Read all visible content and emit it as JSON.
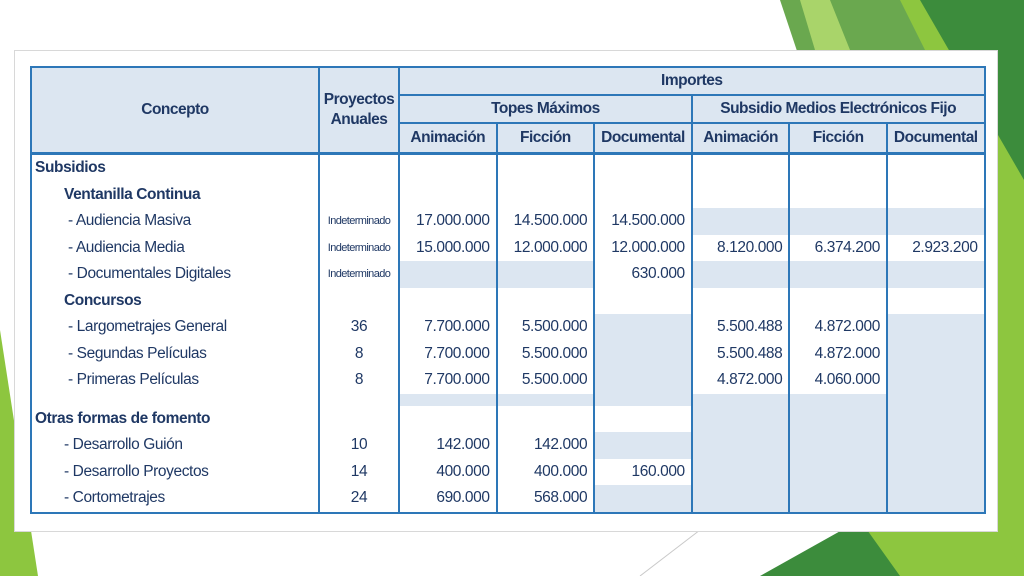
{
  "colors": {
    "accent": "#2d77b8",
    "header_fill": "#dce6f1",
    "text": "#1f3864",
    "green_light": "#8dc63f",
    "green_dark": "#3c8c3c"
  },
  "header": {
    "concepto": "Concepto",
    "proyectos_line1": "Proyectos",
    "proyectos_line2": "Anuales",
    "importes": "Importes",
    "group1": "Topes Máximos",
    "group2": "Subsidio Medios Electrónicos Fijo",
    "cols": [
      "Animación",
      "Ficción",
      "Documental",
      "Animación",
      "Ficción",
      "Documental"
    ]
  },
  "rows": [
    {
      "concept": "Subsidios",
      "level": 0,
      "proj": "",
      "vals": [
        "",
        "",
        "",
        "",
        "",
        ""
      ],
      "shade": [
        false,
        false,
        false,
        false,
        false,
        false
      ]
    },
    {
      "concept": "Ventanilla Continua",
      "level": 1,
      "proj": "",
      "vals": [
        "",
        "",
        "",
        "",
        "",
        ""
      ],
      "shade": [
        false,
        false,
        false,
        false,
        false,
        false
      ]
    },
    {
      "concept": "- Audiencia Masiva",
      "level": 2,
      "proj": "Indeterminado",
      "vals": [
        "17.000.000",
        "14.500.000",
        "14.500.000",
        "",
        "",
        ""
      ],
      "shade": [
        false,
        false,
        false,
        true,
        true,
        true
      ]
    },
    {
      "concept": "- Audiencia Media",
      "level": 2,
      "proj": "Indeterminado",
      "vals": [
        "15.000.000",
        "12.000.000",
        "12.000.000",
        "8.120.000",
        "6.374.200",
        "2.923.200"
      ],
      "shade": [
        false,
        false,
        false,
        false,
        false,
        false
      ]
    },
    {
      "concept": "- Documentales Digitales",
      "level": 2,
      "proj": "Indeterminado",
      "vals": [
        "",
        "",
        "630.000",
        "",
        "",
        ""
      ],
      "shade": [
        true,
        true,
        false,
        true,
        true,
        true
      ]
    },
    {
      "concept": "Concursos",
      "level": 1,
      "proj": "",
      "vals": [
        "",
        "",
        "",
        "",
        "",
        ""
      ],
      "shade": [
        false,
        false,
        false,
        false,
        false,
        false
      ]
    },
    {
      "concept": "- Largometrajes General",
      "level": 2,
      "proj": "36",
      "vals": [
        "7.700.000",
        "5.500.000",
        "",
        "5.500.488",
        "4.872.000",
        ""
      ],
      "shade": [
        false,
        false,
        true,
        false,
        false,
        true
      ]
    },
    {
      "concept": "- Segundas Películas",
      "level": 2,
      "proj": "8",
      "vals": [
        "7.700.000",
        "5.500.000",
        "",
        "5.500.488",
        "4.872.000",
        ""
      ],
      "shade": [
        false,
        false,
        true,
        false,
        false,
        true
      ]
    },
    {
      "concept": "- Primeras Películas",
      "level": 2,
      "proj": "8",
      "vals": [
        "7.700.000",
        "5.500.000",
        "",
        "4.872.000",
        "4.060.000",
        ""
      ],
      "shade": [
        false,
        false,
        true,
        false,
        false,
        true
      ]
    },
    {
      "separator": true,
      "shade": [
        true,
        true,
        true,
        true,
        true,
        true
      ]
    },
    {
      "concept": "Otras formas de fomento",
      "level": 0,
      "proj": "",
      "vals": [
        "",
        "",
        "",
        "",
        "",
        ""
      ],
      "shade": [
        false,
        false,
        false,
        true,
        true,
        true
      ]
    },
    {
      "concept": "- Desarrollo Guión",
      "level": 3,
      "proj": "10",
      "vals": [
        "142.000",
        "142.000",
        "",
        "",
        "",
        ""
      ],
      "shade": [
        false,
        false,
        true,
        true,
        true,
        true
      ]
    },
    {
      "concept": "- Desarrollo Proyectos",
      "level": 3,
      "proj": "14",
      "vals": [
        "400.000",
        "400.000",
        "160.000",
        "",
        "",
        ""
      ],
      "shade": [
        false,
        false,
        false,
        true,
        true,
        true
      ]
    },
    {
      "concept": "- Cortometrajes",
      "level": 3,
      "proj": "24",
      "vals": [
        "690.000",
        "568.000",
        "",
        "",
        "",
        ""
      ],
      "shade": [
        false,
        false,
        true,
        true,
        true,
        true
      ]
    }
  ]
}
